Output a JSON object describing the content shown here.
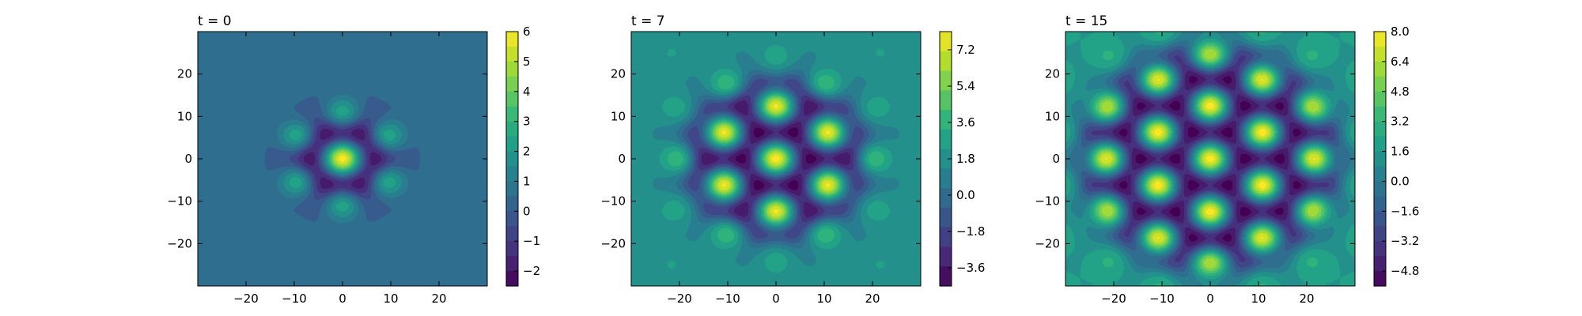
{
  "chart_data": [
    {
      "type": "heatmap",
      "title": "t = 0",
      "xlabel": "",
      "ylabel": "",
      "xlim": [
        -30,
        30
      ],
      "ylim": [
        -30,
        30
      ],
      "x_ticks": [
        -20,
        -10,
        0,
        10,
        20
      ],
      "y_ticks": [
        -20,
        -10,
        0,
        10,
        20
      ],
      "lattice_spacing": 12.5,
      "envelope_radius": 10,
      "background_level": 0.35,
      "colorbar": {
        "min": -2.5,
        "max": 6,
        "ticks": [
          6,
          5,
          4,
          3,
          2,
          1,
          0,
          -1,
          -2
        ],
        "tick_labels": [
          "6",
          "5",
          "4",
          "3",
          "2",
          "1",
          "0",
          "−1",
          "−2"
        ]
      }
    },
    {
      "type": "heatmap",
      "title": "t = 7",
      "xlabel": "",
      "ylabel": "",
      "xlim": [
        -30,
        30
      ],
      "ylim": [
        -30,
        30
      ],
      "x_ticks": [
        -20,
        -10,
        0,
        10,
        20
      ],
      "y_ticks": [
        -20,
        -10,
        0,
        10,
        20
      ],
      "lattice_spacing": 12.5,
      "envelope_radius": 19,
      "background_level": 0.5,
      "colorbar": {
        "min": -4.5,
        "max": 8.1,
        "ticks": [
          7.2,
          5.4,
          3.6,
          1.8,
          0.0,
          -1.8,
          -3.6
        ],
        "tick_labels": [
          "7.2",
          "5.4",
          "3.6",
          "1.8",
          "0.0",
          "−1.8",
          "−3.6"
        ]
      }
    },
    {
      "type": "heatmap",
      "title": "t = 15",
      "xlabel": "",
      "ylabel": "",
      "xlim": [
        -30,
        30
      ],
      "ylim": [
        -30,
        30
      ],
      "x_ticks": [
        -20,
        -10,
        0,
        10,
        20
      ],
      "y_ticks": [
        -20,
        -10,
        0,
        10,
        20
      ],
      "lattice_spacing": 12.5,
      "envelope_radius": 27,
      "background_level": 0.55,
      "colorbar": {
        "min": -5.6,
        "max": 8.0,
        "ticks": [
          8.0,
          6.4,
          4.8,
          3.2,
          1.6,
          0.0,
          -1.6,
          -3.2,
          -4.8
        ],
        "tick_labels": [
          "8.0",
          "6.4",
          "4.8",
          "3.2",
          "1.6",
          "0.0",
          "−1.6",
          "−3.2",
          "−4.8"
        ]
      }
    }
  ],
  "colormap": [
    "#440154",
    "#482878",
    "#3e4989",
    "#31688e",
    "#26828e",
    "#1f9e89",
    "#35b779",
    "#6ece58",
    "#b5de2b",
    "#fde725"
  ]
}
